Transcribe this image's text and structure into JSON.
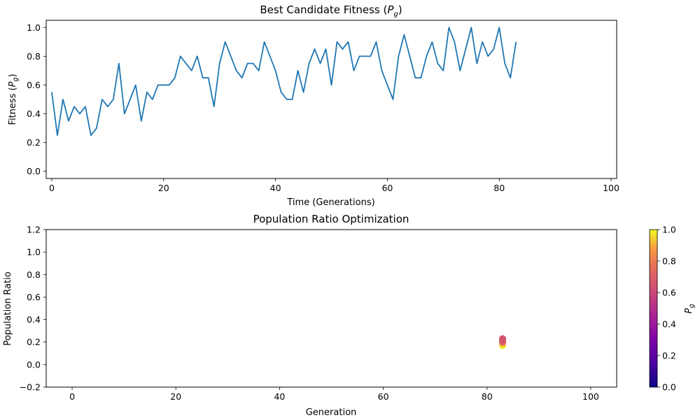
{
  "chart_data": [
    {
      "type": "line",
      "title": "Best Candidate Fitness",
      "title_sym": "P",
      "title_sub": "g",
      "xlabel": "Time (Generations)",
      "ylabel": "Fitness",
      "ylabel_sym": "P",
      "ylabel_sub": "g",
      "xlim": [
        -1,
        101
      ],
      "ylim": [
        -0.05,
        1.05
      ],
      "xticks": [
        0,
        20,
        40,
        60,
        80,
        100
      ],
      "yticks": [
        "0.0",
        "0.2",
        "0.4",
        "0.6",
        "0.8",
        "1.0"
      ],
      "grid": false,
      "color": "#1f77b4",
      "x": [
        0,
        1,
        2,
        3,
        4,
        5,
        6,
        7,
        8,
        9,
        10,
        11,
        12,
        13,
        14,
        15,
        16,
        17,
        18,
        19,
        20,
        21,
        22,
        23,
        24,
        25,
        26,
        27,
        28,
        29,
        30,
        31,
        32,
        33,
        34,
        35,
        36,
        37,
        38,
        39,
        40,
        41,
        42,
        43,
        44,
        45,
        46,
        47,
        48,
        49,
        50,
        51,
        52,
        53,
        54,
        55,
        56,
        57,
        58,
        59,
        60,
        61,
        62,
        63,
        64,
        65,
        66,
        67,
        68,
        69,
        70,
        71,
        72,
        73,
        74,
        75,
        76,
        77,
        78,
        79,
        80,
        81,
        82,
        83
      ],
      "y": [
        0.55,
        0.25,
        0.5,
        0.35,
        0.45,
        0.4,
        0.45,
        0.25,
        0.3,
        0.5,
        0.45,
        0.5,
        0.75,
        0.4,
        0.5,
        0.6,
        0.35,
        0.55,
        0.5,
        0.6,
        0.6,
        0.6,
        0.65,
        0.8,
        0.75,
        0.7,
        0.8,
        0.65,
        0.65,
        0.45,
        0.75,
        0.9,
        0.8,
        0.7,
        0.65,
        0.75,
        0.75,
        0.7,
        0.9,
        0.8,
        0.7,
        0.55,
        0.5,
        0.5,
        0.7,
        0.55,
        0.75,
        0.85,
        0.75,
        0.85,
        0.6,
        0.9,
        0.85,
        0.9,
        0.7,
        0.8,
        0.8,
        0.8,
        0.9,
        0.7,
        0.6,
        0.5,
        0.8,
        0.95,
        0.8,
        0.65,
        0.65,
        0.8,
        0.9,
        0.75,
        0.7,
        1.0,
        0.9,
        0.7,
        0.85,
        1.0,
        0.75,
        0.9,
        0.8,
        0.85,
        1.0,
        0.75,
        0.65,
        0.9
      ]
    },
    {
      "type": "scatter",
      "title": "Population Ratio Optimization",
      "xlabel": "Generation",
      "ylabel": "Population Ratio",
      "xlim": [
        -5,
        105
      ],
      "ylim": [
        -0.2,
        1.2
      ],
      "xticks": [
        0,
        20,
        40,
        60,
        80,
        100
      ],
      "yticks": [
        "−0.2",
        "0.0",
        "0.2",
        "0.4",
        "0.6",
        "0.8",
        "1.0",
        "1.2"
      ],
      "grid": false,
      "colormap": "plasma",
      "points": [
        {
          "x": 83,
          "y": 0.17,
          "c": 0.98
        },
        {
          "x": 83,
          "y": 0.19,
          "c": 0.9
        },
        {
          "x": 83,
          "y": 0.2,
          "c": 0.75
        },
        {
          "x": 83,
          "y": 0.21,
          "c": 0.68
        },
        {
          "x": 83,
          "y": 0.22,
          "c": 0.66
        },
        {
          "x": 83,
          "y": 0.23,
          "c": 0.65
        }
      ],
      "colorbar": {
        "label_sym": "P",
        "label_sub": "g",
        "range": [
          0.0,
          1.0
        ],
        "ticks": [
          "0.0",
          "0.2",
          "0.4",
          "0.6",
          "0.8",
          "1.0"
        ]
      }
    }
  ]
}
